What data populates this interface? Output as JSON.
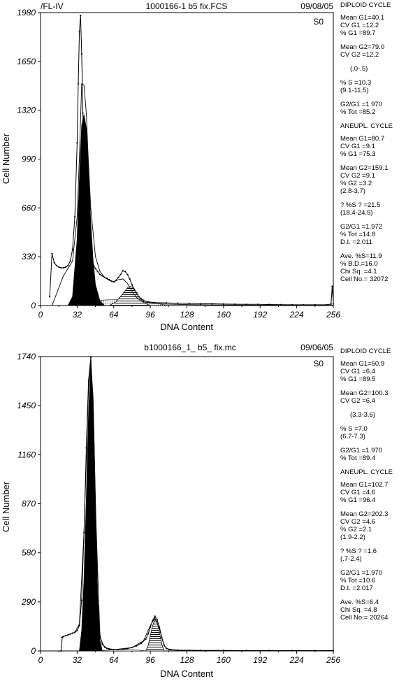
{
  "colors": {
    "axis": "#000000",
    "fill": "#000000",
    "background": "#ffffff"
  },
  "chart_data": [
    {
      "type": "area",
      "header": {
        "left": "/FL-IV",
        "center": "1000166-1 b5 fix.FCS",
        "right": "09/08/05"
      },
      "tag": "S0",
      "xlabel": "DNA Content",
      "ylabel": "Cell Number",
      "xlim": [
        0,
        256
      ],
      "ylim": [
        0,
        1980
      ],
      "xticks": [
        "0",
        "32",
        "64",
        "96",
        "128",
        "160",
        "192",
        "224",
        "256"
      ],
      "yticks": [
        "0",
        "330",
        "660",
        "990",
        "1320",
        "1650",
        "1980"
      ],
      "series": [
        {
          "kind": "histogram",
          "x": [
            8,
            10,
            12,
            14,
            16,
            18,
            20,
            22,
            24,
            26,
            28,
            30,
            32,
            33,
            34,
            35,
            36,
            37,
            38,
            39,
            40,
            42,
            44,
            46,
            48,
            50,
            52,
            54,
            56,
            58,
            60,
            62,
            64,
            66,
            68,
            70,
            72,
            74,
            76,
            78,
            80,
            82,
            84,
            86,
            88,
            90,
            94,
            100,
            110,
            120,
            130,
            140,
            150,
            160,
            170,
            180,
            190,
            200,
            210,
            220,
            230,
            240,
            250,
            254,
            255,
            256
          ],
          "y": [
            60,
            350,
            290,
            270,
            260,
            255,
            255,
            260,
            270,
            300,
            380,
            600,
            1100,
            1500,
            1850,
            1960,
            1700,
            1300,
            900,
            650,
            500,
            400,
            320,
            280,
            250,
            230,
            210,
            200,
            190,
            185,
            175,
            165,
            160,
            170,
            190,
            210,
            235,
            230,
            210,
            180,
            140,
            110,
            85,
            60,
            45,
            35,
            25,
            20,
            18,
            16,
            14,
            12,
            12,
            10,
            9,
            8,
            8,
            7,
            6,
            5,
            5,
            5,
            5,
            10,
            130,
            10
          ]
        },
        {
          "kind": "diploid-G1",
          "x": [
            24,
            28,
            32,
            34,
            36,
            38,
            40,
            42,
            44,
            46,
            48,
            52,
            56
          ],
          "y": [
            0,
            60,
            450,
            850,
            1220,
            1290,
            1200,
            900,
            550,
            300,
            140,
            30,
            0
          ]
        },
        {
          "kind": "G2-peak",
          "x": [
            60,
            66,
            72,
            76,
            79,
            82,
            86,
            90,
            96
          ],
          "y": [
            0,
            25,
            80,
            120,
            130,
            110,
            60,
            20,
            0
          ]
        },
        {
          "kind": "S-phase",
          "x": [
            32,
            48,
            64,
            80,
            96,
            112
          ],
          "y": [
            5,
            35,
            40,
            35,
            20,
            0
          ]
        },
        {
          "kind": "model-fit",
          "x": [
            10,
            20,
            28,
            32,
            34,
            36,
            38,
            40,
            42,
            44,
            48,
            52,
            56,
            60,
            64,
            68,
            72,
            76,
            80,
            84,
            88,
            96,
            110,
            130,
            160,
            200,
            256
          ],
          "y": [
            0,
            200,
            300,
            600,
            1000,
            1500,
            1490,
            1300,
            950,
            650,
            330,
            230,
            190,
            170,
            160,
            175,
            180,
            150,
            95,
            55,
            30,
            15,
            10,
            6,
            4,
            3,
            2
          ]
        }
      ],
      "stats": {
        "sections": [
          {
            "kind": "header",
            "text": "DIPLOID CYCLE"
          },
          {
            "kind": "group",
            "lines": [
              "Mean G1=40.1",
              "CV G1 =12.2",
              "% G1 =89.7"
            ]
          },
          {
            "kind": "group",
            "lines": [
              "Mean G2=79.0",
              "CV G2 =12.2"
            ]
          },
          {
            "kind": "group",
            "indent": true,
            "lines": [
              "(.0-.5)"
            ]
          },
          {
            "kind": "group",
            "lines": [
              "% S =10.3",
              "(9.1-11.5)"
            ]
          },
          {
            "kind": "group",
            "lines": [
              "G2/G1 =1.970",
              "% Tot =85.2"
            ]
          },
          {
            "kind": "header",
            "text": "ANEUPL. CYCLE"
          },
          {
            "kind": "group",
            "lines": [
              "Mean G1=80.7",
              "CV G1 =9.1",
              "% G1 =75.3"
            ]
          },
          {
            "kind": "group",
            "lines": [
              "Mean G2=159.1",
              "CV G2 =9.1",
              "% G2 =3.2",
              "(2.8-3.7)"
            ]
          },
          {
            "kind": "group",
            "lines": [
              "? %S ? =21.5",
              "(18.4-24.5)"
            ]
          },
          {
            "kind": "group",
            "lines": [
              "G2/G1 =1.972",
              "% Tot =14.8",
              "D.I. =2.011"
            ]
          },
          {
            "kind": "group",
            "lines": [
              "Ave. %S=11.9",
              "% B.D.=16.0",
              "Chi Sq. =4.1",
              "Cell No.= 32072"
            ]
          }
        ]
      }
    },
    {
      "type": "area",
      "header": {
        "left": "",
        "center": "b1000166_1_ b5_ fix.mc",
        "right": "09/06/05"
      },
      "tag": "S0",
      "xlabel": "DNA Content",
      "ylabel": "Cell Number",
      "xlim": [
        0,
        256
      ],
      "ylim": [
        0,
        1740
      ],
      "xticks": [
        "0",
        "32",
        "64",
        "96",
        "128",
        "160",
        "192",
        "224",
        "256"
      ],
      "yticks": [
        "0",
        "290",
        "580",
        "870",
        "1160",
        "1450",
        "1740"
      ],
      "series": [
        {
          "kind": "histogram",
          "x": [
            18,
            19,
            20,
            22,
            24,
            26,
            28,
            30,
            32,
            34,
            36,
            38,
            40,
            42,
            44,
            46,
            48,
            50,
            52,
            54,
            56,
            58,
            60,
            64,
            68,
            72,
            76,
            80,
            84,
            88,
            92,
            94,
            96,
            98,
            100,
            102,
            104,
            106,
            108,
            110,
            114,
            120,
            130,
            140,
            160,
            180,
            200,
            220,
            240,
            256
          ],
          "y": [
            0,
            80,
            85,
            90,
            95,
            100,
            105,
            110,
            120,
            150,
            300,
            700,
            1200,
            1600,
            1735,
            1400,
            800,
            300,
            90,
            40,
            25,
            15,
            10,
            8,
            8,
            10,
            14,
            20,
            30,
            45,
            70,
            100,
            140,
            180,
            205,
            185,
            140,
            80,
            35,
            15,
            8,
            5,
            4,
            3,
            3,
            2,
            2,
            2,
            2,
            2
          ]
        },
        {
          "kind": "diploid-G1",
          "x": [
            34,
            36,
            38,
            40,
            42,
            44,
            46,
            48,
            50,
            52,
            54
          ],
          "y": [
            0,
            120,
            420,
            900,
            1400,
            1700,
            1500,
            900,
            300,
            60,
            0
          ]
        },
        {
          "kind": "G2-peak",
          "x": [
            92,
            94,
            96,
            98,
            100,
            102,
            104,
            106,
            108
          ],
          "y": [
            0,
            30,
            90,
            150,
            185,
            170,
            110,
            40,
            0
          ]
        },
        {
          "kind": "S-phase",
          "x": [
            48,
            64,
            80,
            92
          ],
          "y": [
            0,
            6,
            10,
            0
          ]
        },
        {
          "kind": "model-fit",
          "x": [
            18,
            24,
            30,
            34,
            38,
            42,
            44,
            46,
            48,
            52,
            56,
            64,
            80,
            90,
            96,
            100,
            104,
            108,
            112,
            128,
            256
          ],
          "y": [
            80,
            95,
            110,
            160,
            700,
            1550,
            1720,
            1450,
            850,
            80,
            20,
            8,
            20,
            60,
            150,
            195,
            130,
            30,
            6,
            3,
            2
          ]
        }
      ],
      "stats": {
        "sections": [
          {
            "kind": "header",
            "text": "DIPLOID CYCLE"
          },
          {
            "kind": "group",
            "lines": [
              "Mean G1=50.9",
              "CV G1 =6.4",
              "% G1 =89.5"
            ]
          },
          {
            "kind": "group",
            "lines": [
              "Mean G2=100.3",
              "CV G2 =6.4"
            ]
          },
          {
            "kind": "group",
            "indent": true,
            "lines": [
              "(3.3-3.6)"
            ]
          },
          {
            "kind": "group",
            "lines": [
              "% S =7.0",
              "(6.7-7.3)"
            ]
          },
          {
            "kind": "group",
            "lines": [
              "G2/G1 =1.970",
              "% Tot =89.4"
            ]
          },
          {
            "kind": "header",
            "text": "ANEUPL. CYCLE"
          },
          {
            "kind": "group",
            "lines": [
              "Mean G1=102.7",
              "CV G1 =4.6",
              "% G1 =96.4"
            ]
          },
          {
            "kind": "group",
            "lines": [
              "Mean G2=202.3",
              "CV G2 =4.6",
              "% G2 =2.1",
              "(1.9-2.2)"
            ]
          },
          {
            "kind": "group",
            "lines": [
              "? %S ? =1.6",
              "(.7-2.4)"
            ]
          },
          {
            "kind": "group",
            "lines": [
              "G2/G1 =1.970",
              "% Tot =10.6",
              "D.I. =2.017"
            ]
          },
          {
            "kind": "group",
            "lines": [
              "Ave. %S=6.4",
              "Chi Sq. =4.8",
              "Cell No.= 20264"
            ]
          }
        ]
      }
    }
  ]
}
